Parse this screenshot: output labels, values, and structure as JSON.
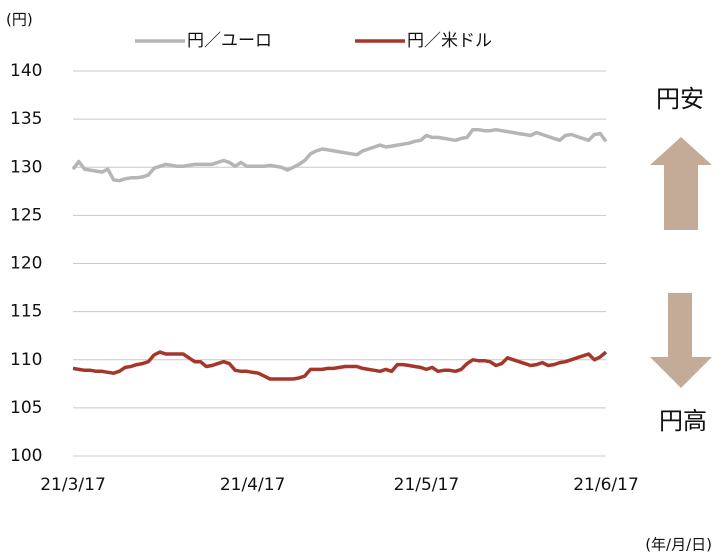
{
  "chart_data": {
    "type": "line",
    "unit_label": "(円)",
    "x_unit_label": "(年/月/日)",
    "annotations": [
      "円安",
      "円高"
    ],
    "categories": [
      "21/3/17",
      null,
      null,
      null,
      null,
      null,
      null,
      null,
      null,
      null,
      null,
      null,
      null,
      null,
      null,
      null,
      null,
      null,
      null,
      null,
      null,
      null,
      null,
      null,
      null,
      null,
      null,
      null,
      null,
      null,
      null,
      "21/4/17",
      null,
      null,
      null,
      null,
      null,
      null,
      null,
      null,
      null,
      null,
      null,
      null,
      null,
      null,
      null,
      null,
      null,
      null,
      null,
      null,
      null,
      null,
      null,
      null,
      null,
      null,
      null,
      null,
      null,
      "21/5/17",
      null,
      null,
      null,
      null,
      null,
      null,
      null,
      null,
      null,
      null,
      null,
      null,
      null,
      null,
      null,
      null,
      null,
      null,
      null,
      null,
      null,
      null,
      null,
      null,
      null,
      null,
      null,
      null,
      null,
      null,
      "21/6/17"
    ],
    "series": [
      {
        "name": "円／ユーロ",
        "color": "#b5b5b5",
        "values": [
          129.8,
          130.6,
          129.8,
          129.7,
          129.6,
          129.5,
          129.8,
          128.7,
          128.6,
          128.8,
          128.9,
          128.9,
          129.0,
          129.2,
          129.9,
          130.1,
          130.3,
          130.2,
          130.1,
          130.1,
          130.2,
          130.3,
          130.3,
          130.3,
          130.3,
          130.5,
          130.7,
          130.5,
          130.1,
          130.5,
          130.1,
          130.1,
          130.1,
          130.1,
          130.2,
          130.1,
          130.0,
          129.7,
          130.0,
          130.3,
          130.7,
          131.4,
          131.7,
          131.9,
          131.8,
          131.7,
          131.6,
          131.5,
          131.4,
          131.3,
          131.7,
          131.9,
          132.1,
          132.3,
          132.1,
          132.2,
          132.3,
          132.4,
          132.5,
          132.7,
          132.8,
          133.3,
          133.1,
          133.1,
          133.0,
          132.9,
          132.8,
          133.0,
          133.1,
          133.9,
          133.9,
          133.8,
          133.8,
          133.9,
          133.8,
          133.7,
          133.6,
          133.5,
          133.4,
          133.3,
          133.6,
          133.4,
          133.2,
          133.0,
          132.8,
          133.3,
          133.4,
          133.2,
          133.0,
          132.8,
          133.4,
          133.5,
          132.7
        ]
      },
      {
        "name": "円／米ドル",
        "color": "#a5372a",
        "values": [
          109.1,
          109.0,
          108.9,
          108.9,
          108.8,
          108.8,
          108.7,
          108.6,
          108.8,
          109.2,
          109.3,
          109.5,
          109.6,
          109.8,
          110.5,
          110.8,
          110.6,
          110.6,
          110.6,
          110.6,
          110.2,
          109.8,
          109.8,
          109.3,
          109.4,
          109.6,
          109.8,
          109.6,
          108.9,
          108.8,
          108.8,
          108.7,
          108.6,
          108.3,
          108.0,
          108.0,
          108.0,
          108.0,
          108.0,
          108.1,
          108.3,
          109.0,
          109.0,
          109.0,
          109.1,
          109.1,
          109.2,
          109.3,
          109.3,
          109.3,
          109.1,
          109.0,
          108.9,
          108.8,
          109.0,
          108.8,
          109.5,
          109.5,
          109.4,
          109.3,
          109.2,
          109.0,
          109.2,
          108.8,
          108.9,
          108.9,
          108.8,
          109.0,
          109.6,
          110.0,
          109.9,
          109.9,
          109.8,
          109.4,
          109.6,
          110.2,
          110.0,
          109.8,
          109.6,
          109.4,
          109.5,
          109.7,
          109.4,
          109.5,
          109.7,
          109.8,
          110.0,
          110.2,
          110.4,
          110.6,
          110.0,
          110.3,
          110.8
        ]
      }
    ],
    "ylim": [
      100,
      140
    ],
    "yticks": [
      100,
      105,
      110,
      115,
      120,
      125,
      130,
      135,
      140
    ],
    "grid": true
  }
}
